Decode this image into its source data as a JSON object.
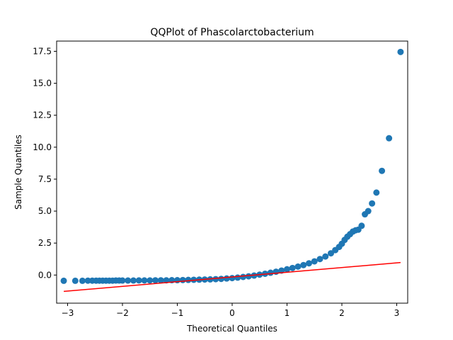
{
  "chart_data": {
    "type": "scatter",
    "title": "QQPlot of Phascolarctobacterium",
    "xlabel": "Theoretical Quantiles",
    "ylabel": "Sample Quantiles",
    "xlim": [
      -3.2,
      3.2
    ],
    "ylim": [
      -2.2,
      18.3
    ],
    "grid": false,
    "x_ticks": [
      -3,
      -2,
      -1,
      0,
      1,
      2,
      3
    ],
    "x_tick_labels": [
      "−3",
      "−2",
      "−1",
      "0",
      "1",
      "2",
      "3"
    ],
    "y_ticks": [
      0.0,
      2.5,
      5.0,
      7.5,
      10.0,
      12.5,
      15.0,
      17.5
    ],
    "y_tick_labels": [
      "0.0",
      "2.5",
      "5.0",
      "7.5",
      "10.0",
      "12.5",
      "15.0",
      "17.5"
    ],
    "colors": {
      "points": "#1f77b4",
      "reference_line": "#ff0000",
      "axes": "#000000"
    },
    "series": [
      {
        "kind": "points",
        "x": [
          -3.07,
          -2.86,
          -2.73,
          -2.63,
          -2.55,
          -2.48,
          -2.42,
          -2.36,
          -2.3,
          -2.24,
          -2.18,
          -2.12,
          -2.06,
          -2.0,
          -1.9,
          -1.8,
          -1.7,
          -1.6,
          -1.5,
          -1.4,
          -1.3,
          -1.2,
          -1.1,
          -1.0,
          -0.9,
          -0.8,
          -0.7,
          -0.6,
          -0.5,
          -0.4,
          -0.3,
          -0.2,
          -0.1,
          0.0,
          0.1,
          0.2,
          0.3,
          0.4,
          0.5,
          0.6,
          0.7,
          0.8,
          0.9,
          1.0,
          1.1,
          1.2,
          1.3,
          1.4,
          1.5,
          1.6,
          1.7,
          1.8,
          1.88,
          1.95,
          2.0,
          2.05,
          2.1,
          2.15,
          2.2,
          2.25,
          2.3,
          2.36,
          2.42,
          2.48,
          2.55,
          2.63,
          2.73,
          2.86,
          3.07
        ],
        "y": [
          -0.45,
          -0.45,
          -0.45,
          -0.44,
          -0.44,
          -0.44,
          -0.44,
          -0.44,
          -0.44,
          -0.44,
          -0.44,
          -0.43,
          -0.43,
          -0.43,
          -0.43,
          -0.43,
          -0.42,
          -0.42,
          -0.42,
          -0.41,
          -0.41,
          -0.41,
          -0.4,
          -0.4,
          -0.39,
          -0.38,
          -0.37,
          -0.36,
          -0.35,
          -0.34,
          -0.32,
          -0.3,
          -0.27,
          -0.24,
          -0.2,
          -0.15,
          -0.1,
          -0.04,
          0.03,
          0.1,
          0.18,
          0.26,
          0.35,
          0.45,
          0.55,
          0.66,
          0.78,
          0.92,
          1.07,
          1.25,
          1.45,
          1.7,
          1.95,
          2.2,
          2.45,
          2.75,
          3.0,
          3.2,
          3.4,
          3.5,
          3.55,
          3.85,
          4.75,
          5.0,
          5.6,
          6.45,
          8.15,
          10.7,
          17.45
        ]
      },
      {
        "kind": "reference_line",
        "x": [
          -3.07,
          3.07
        ],
        "y": [
          -1.28,
          0.98
        ]
      }
    ]
  }
}
